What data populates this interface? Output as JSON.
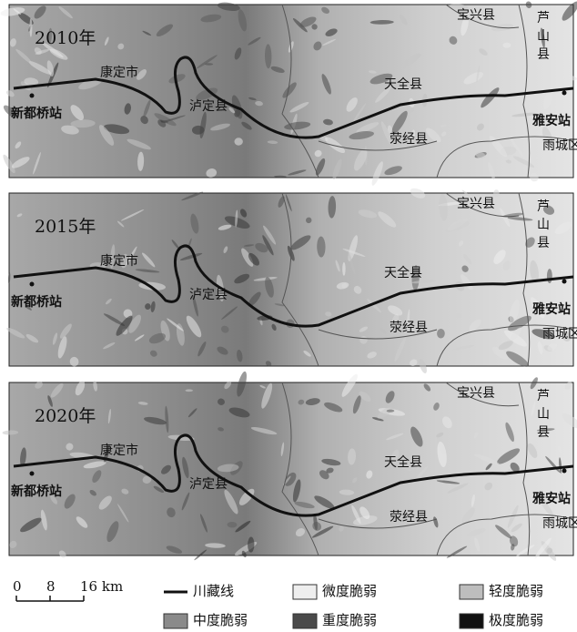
{
  "panels": [
    {
      "year": "2010年"
    },
    {
      "year": "2015年"
    },
    {
      "year": "2020年"
    }
  ],
  "places": {
    "kangding": "康定市",
    "luding": "泸定县",
    "tianquan": "天全县",
    "baoxing": "宝兴县",
    "lushan": [
      "芦",
      "山",
      "县"
    ],
    "xinduqiao": "新都桥站",
    "yaan": "雅安站",
    "yucheng": "雨城区",
    "yingjing": "荥经县"
  },
  "scale": {
    "labels": [
      "0",
      "8",
      "16 km"
    ]
  },
  "legend": [
    {
      "label": "川藏线",
      "kind": "line",
      "color": "#111111"
    },
    {
      "label": "微度脆弱",
      "kind": "box",
      "color": "#eeeeee"
    },
    {
      "label": "轻度脆弱",
      "kind": "box",
      "color": "#bdbdbd"
    },
    {
      "label": "中度脆弱",
      "kind": "box",
      "color": "#8a8a8a"
    },
    {
      "label": "重度脆弱",
      "kind": "box",
      "color": "#4a4a4a"
    },
    {
      "label": "极度脆弱",
      "kind": "box",
      "color": "#111111"
    }
  ]
}
